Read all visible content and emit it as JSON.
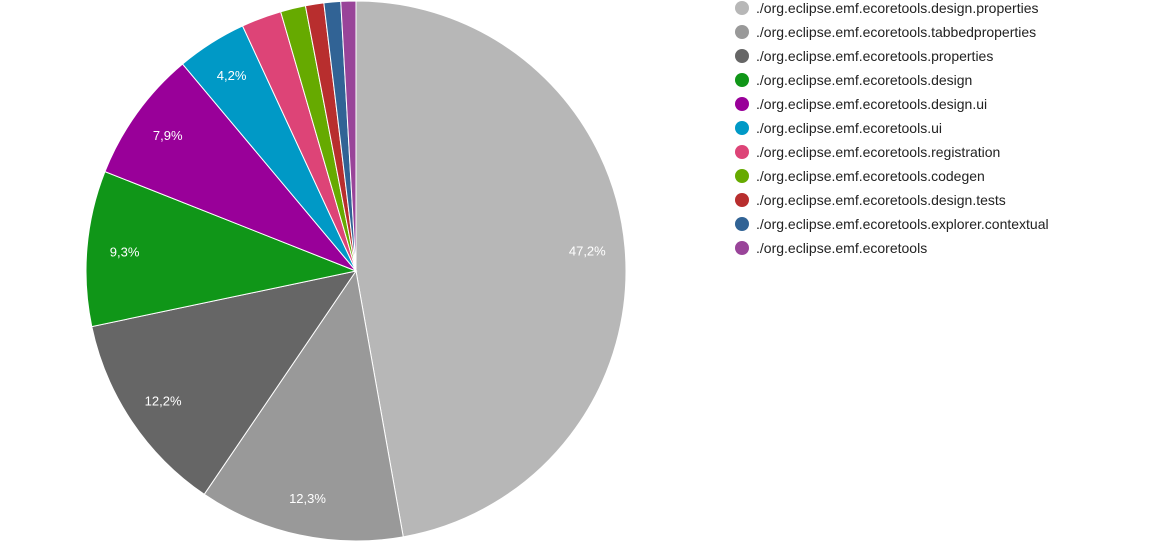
{
  "chart_data": {
    "type": "pie",
    "legend_position": "right",
    "slices": [
      {
        "name": "./org.eclipse.emf.ecoretools.design.properties",
        "value": 47.2,
        "label": "47,2%",
        "color": "#b7b7b7"
      },
      {
        "name": "./org.eclipse.emf.ecoretools.tabbedproperties",
        "value": 12.3,
        "label": "12,3%",
        "color": "#999999"
      },
      {
        "name": "./org.eclipse.emf.ecoretools.properties",
        "value": 12.2,
        "label": "12,2%",
        "color": "#666666"
      },
      {
        "name": "./org.eclipse.emf.ecoretools.design",
        "value": 9.3,
        "label": "9,3%",
        "color": "#109618"
      },
      {
        "name": "./org.eclipse.emf.ecoretools.design.ui",
        "value": 7.9,
        "label": "7,9%",
        "color": "#990099"
      },
      {
        "name": "./org.eclipse.emf.ecoretools.ui",
        "value": 4.2,
        "label": "4,2%",
        "color": "#0099c6"
      },
      {
        "name": "./org.eclipse.emf.ecoretools.registration",
        "value": 2.4,
        "label": "",
        "color": "#dd4477"
      },
      {
        "name": "./org.eclipse.emf.ecoretools.codegen",
        "value": 1.5,
        "label": "",
        "color": "#66aa00"
      },
      {
        "name": "./org.eclipse.emf.ecoretools.design.tests",
        "value": 1.1,
        "label": "",
        "color": "#b82e2e"
      },
      {
        "name": "./org.eclipse.emf.ecoretools.explorer.contextual",
        "value": 1.0,
        "label": "",
        "color": "#316395"
      },
      {
        "name": "./org.eclipse.emf.ecoretools",
        "value": 0.9,
        "label": "",
        "color": "#994499"
      }
    ]
  }
}
